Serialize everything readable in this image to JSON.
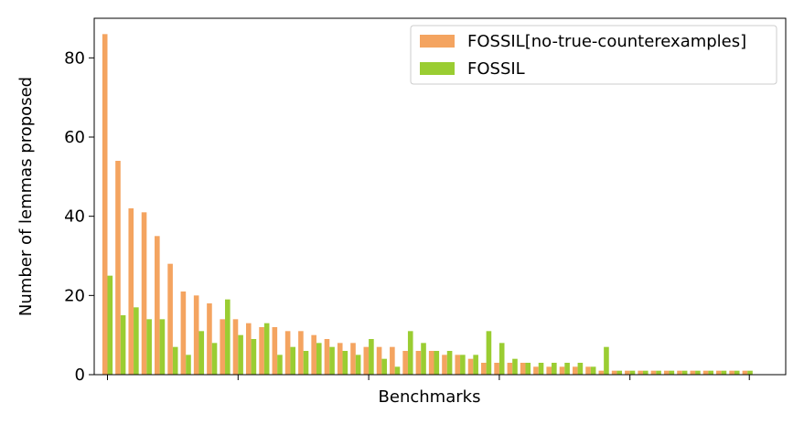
{
  "chart_data": {
    "type": "bar",
    "title": "",
    "xlabel": "Benchmarks",
    "ylabel": "Number of lemmas proposed",
    "ylim": [
      0,
      90
    ],
    "yticks": [
      "0",
      "20",
      "40",
      "60",
      "80"
    ],
    "grid": false,
    "legend_position": "top-right",
    "series": [
      {
        "name": "FOSSIL[no-true-counterexamples]",
        "color": "#f4a460",
        "values": [
          86,
          54,
          42,
          41,
          35,
          28,
          21,
          20,
          18,
          14,
          14,
          13,
          12,
          12,
          11,
          11,
          10,
          9,
          8,
          8,
          7,
          7,
          7,
          6,
          6,
          6,
          5,
          5,
          4,
          3,
          3,
          3,
          3,
          2,
          2,
          2,
          2,
          2,
          1,
          1,
          1,
          1,
          1,
          1,
          1,
          1,
          1,
          1,
          1,
          1
        ]
      },
      {
        "name": "FOSSIL",
        "color": "#9acd32",
        "values": [
          25,
          15,
          17,
          14,
          14,
          7,
          5,
          11,
          8,
          19,
          10,
          9,
          13,
          5,
          7,
          6,
          8,
          7,
          6,
          5,
          9,
          4,
          2,
          11,
          8,
          6,
          6,
          5,
          5,
          11,
          8,
          4,
          3,
          3,
          3,
          3,
          3,
          2,
          7,
          1,
          1,
          1,
          1,
          1,
          1,
          1,
          1,
          1,
          1,
          1
        ]
      }
    ]
  }
}
